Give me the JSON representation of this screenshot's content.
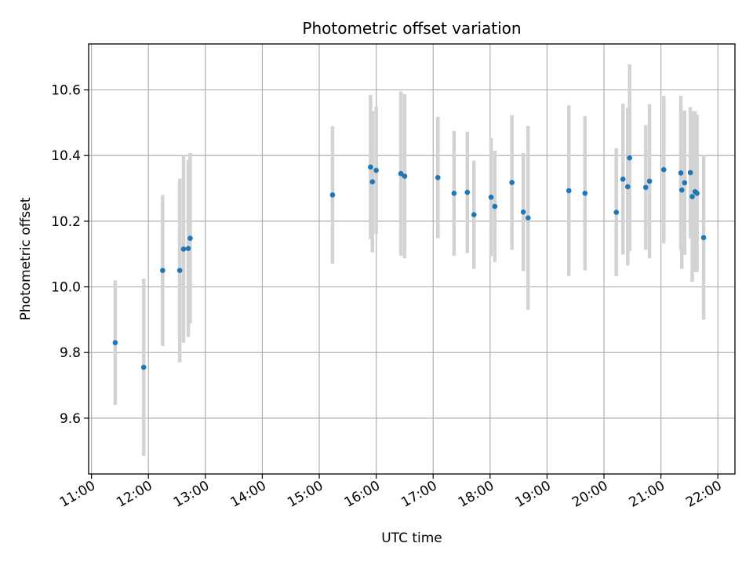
{
  "chart_data": {
    "type": "scatter",
    "title": "Photometric offset variation",
    "xlabel": "UTC time",
    "ylabel": "Photometric offset",
    "xlim": [
      "10:57",
      "22:18"
    ],
    "ylim": [
      9.43,
      10.74
    ],
    "x_ticks": [
      "11:00",
      "12:00",
      "13:00",
      "14:00",
      "15:00",
      "16:00",
      "17:00",
      "18:00",
      "19:00",
      "20:00",
      "21:00",
      "22:00"
    ],
    "y_ticks": [
      "9.6",
      "9.8",
      "10.0",
      "10.2",
      "10.4",
      "10.6"
    ],
    "grid": true,
    "colors": {
      "points": "#1f77b4",
      "errorbars": "#d3d3d3"
    },
    "series": [
      {
        "points": [
          {
            "x": "11:25",
            "y": 9.83,
            "yerr": 0.19
          },
          {
            "x": "11:55",
            "y": 9.755,
            "yerr": 0.27
          },
          {
            "x": "12:15",
            "y": 10.05,
            "yerr": 0.23
          },
          {
            "x": "12:33",
            "y": 10.05,
            "yerr": 0.28
          },
          {
            "x": "12:37",
            "y": 10.115,
            "yerr": 0.285
          },
          {
            "x": "12:42",
            "y": 10.117,
            "yerr": 0.27
          },
          {
            "x": "12:44",
            "y": 10.148,
            "yerr": 0.26
          },
          {
            "x": "15:14",
            "y": 10.28,
            "yerr": 0.21
          },
          {
            "x": "15:54",
            "y": 10.365,
            "yerr": 0.22
          },
          {
            "x": "15:56",
            "y": 10.32,
            "yerr": 0.215
          },
          {
            "x": "16:00",
            "y": 10.355,
            "yerr": 0.195
          },
          {
            "x": "16:26",
            "y": 10.345,
            "yerr": 0.25
          },
          {
            "x": "16:30",
            "y": 10.337,
            "yerr": 0.25
          },
          {
            "x": "17:05",
            "y": 10.333,
            "yerr": 0.185
          },
          {
            "x": "17:22",
            "y": 10.285,
            "yerr": 0.19
          },
          {
            "x": "17:36",
            "y": 10.288,
            "yerr": 0.185
          },
          {
            "x": "17:43",
            "y": 10.22,
            "yerr": 0.165
          },
          {
            "x": "18:01",
            "y": 10.273,
            "yerr": 0.18
          },
          {
            "x": "18:05",
            "y": 10.245,
            "yerr": 0.17
          },
          {
            "x": "18:23",
            "y": 10.318,
            "yerr": 0.205
          },
          {
            "x": "18:35",
            "y": 10.228,
            "yerr": 0.18
          },
          {
            "x": "18:40",
            "y": 10.21,
            "yerr": 0.28
          },
          {
            "x": "19:23",
            "y": 10.293,
            "yerr": 0.26
          },
          {
            "x": "19:40",
            "y": 10.285,
            "yerr": 0.235
          },
          {
            "x": "20:13",
            "y": 10.227,
            "yerr": 0.195
          },
          {
            "x": "20:20",
            "y": 10.328,
            "yerr": 0.23
          },
          {
            "x": "20:25",
            "y": 10.305,
            "yerr": 0.24
          },
          {
            "x": "20:27",
            "y": 10.393,
            "yerr": 0.285
          },
          {
            "x": "20:44",
            "y": 10.303,
            "yerr": 0.19
          },
          {
            "x": "20:48",
            "y": 10.322,
            "yerr": 0.235
          },
          {
            "x": "21:03",
            "y": 10.357,
            "yerr": 0.225
          },
          {
            "x": "21:21",
            "y": 10.347,
            "yerr": 0.235
          },
          {
            "x": "21:22",
            "y": 10.295,
            "yerr": 0.24
          },
          {
            "x": "21:25",
            "y": 10.317,
            "yerr": 0.22
          },
          {
            "x": "21:31",
            "y": 10.348,
            "yerr": 0.2
          },
          {
            "x": "21:33",
            "y": 10.275,
            "yerr": 0.26
          },
          {
            "x": "21:36",
            "y": 10.29,
            "yerr": 0.245
          },
          {
            "x": "21:38",
            "y": 10.285,
            "yerr": 0.24
          },
          {
            "x": "21:45",
            "y": 10.15,
            "yerr": 0.25
          }
        ]
      }
    ]
  }
}
